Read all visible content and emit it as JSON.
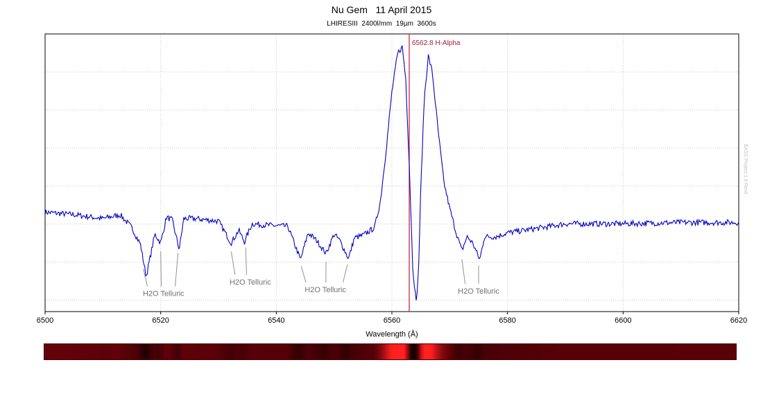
{
  "chart_data": {
    "type": "line",
    "title": "Nu Gem   11 April 2015",
    "subtitle": "LHIRESIII  2400l/mm  19µm  3600s",
    "xlabel": "Wavelength (Å)",
    "ylabel": "",
    "xlim": [
      6500,
      6620
    ],
    "ylim": [
      0.45,
      2.6
    ],
    "xticks": [
      6500,
      6520,
      6540,
      6560,
      6580,
      6600,
      6620
    ],
    "grid": true,
    "line_color": "#0000c0",
    "marker_color": "#cc2244",
    "watermark": "BASS Project 1.9 Rev0",
    "series": [
      {
        "name": "",
        "x": [
          6500,
          6505,
          6510,
          6513,
          6515,
          6516.5,
          6517.5,
          6519,
          6520,
          6521,
          6522,
          6523.2,
          6524,
          6526,
          6530,
          6532.2,
          6533.5,
          6534.5,
          6535.8,
          6538,
          6542,
          6544.2,
          6545.5,
          6547,
          6548.6,
          6550,
          6551,
          6552.5,
          6553.5,
          6555,
          6557,
          6558,
          6559,
          6560,
          6561,
          6561.8,
          6562.4,
          6563,
          6563.6,
          6564.2,
          6564.6,
          6565,
          6565.6,
          6566.3,
          6567,
          6568,
          6569,
          6570,
          6571,
          6572.1,
          6573,
          6574,
          6575.2,
          6576,
          6578,
          6580,
          6583,
          6586,
          6590,
          6600,
          6610,
          6620
        ],
        "y": [
          1.22,
          1.2,
          1.17,
          1.2,
          1.1,
          0.97,
          0.72,
          1.05,
          0.98,
          1.18,
          1.16,
          0.93,
          1.17,
          1.17,
          1.15,
          0.98,
          1.08,
          0.99,
          1.13,
          1.12,
          1.11,
          0.85,
          1.06,
          1.0,
          0.9,
          1.05,
          1.0,
          0.86,
          1.02,
          1.04,
          1.1,
          1.3,
          1.7,
          2.15,
          2.45,
          2.5,
          2.25,
          1.6,
          0.8,
          0.52,
          0.75,
          1.4,
          2.1,
          2.43,
          2.3,
          1.85,
          1.45,
          1.25,
          1.08,
          0.92,
          1.03,
          0.98,
          0.85,
          1.03,
          1.03,
          1.06,
          1.08,
          1.1,
          1.13,
          1.13,
          1.14,
          1.14
        ]
      }
    ],
    "marker": {
      "x": 6563,
      "label": "6562.8 H-Alpha"
    },
    "annotations": [
      {
        "text": "H2O Telluric",
        "x": 6520.5,
        "y": 0.57,
        "targets": [
          6517.0,
          6520.0,
          6523.0
        ]
      },
      {
        "text": "H2O Telluric",
        "x": 6535.5,
        "y": 0.66,
        "targets": [
          6532.2,
          6534.7
        ]
      },
      {
        "text": "H2O Telluric",
        "x": 6548.5,
        "y": 0.6,
        "targets": [
          6544.3,
          6548.6,
          6552.3
        ]
      },
      {
        "text": "H2O Telluric",
        "x": 6575,
        "y": 0.59,
        "targets": [
          6572.1,
          6575.0
        ]
      }
    ]
  },
  "strip": {
    "colors": {
      "background": "#5a0008",
      "bright": "#ff2020",
      "dark": "#0a0000"
    }
  }
}
